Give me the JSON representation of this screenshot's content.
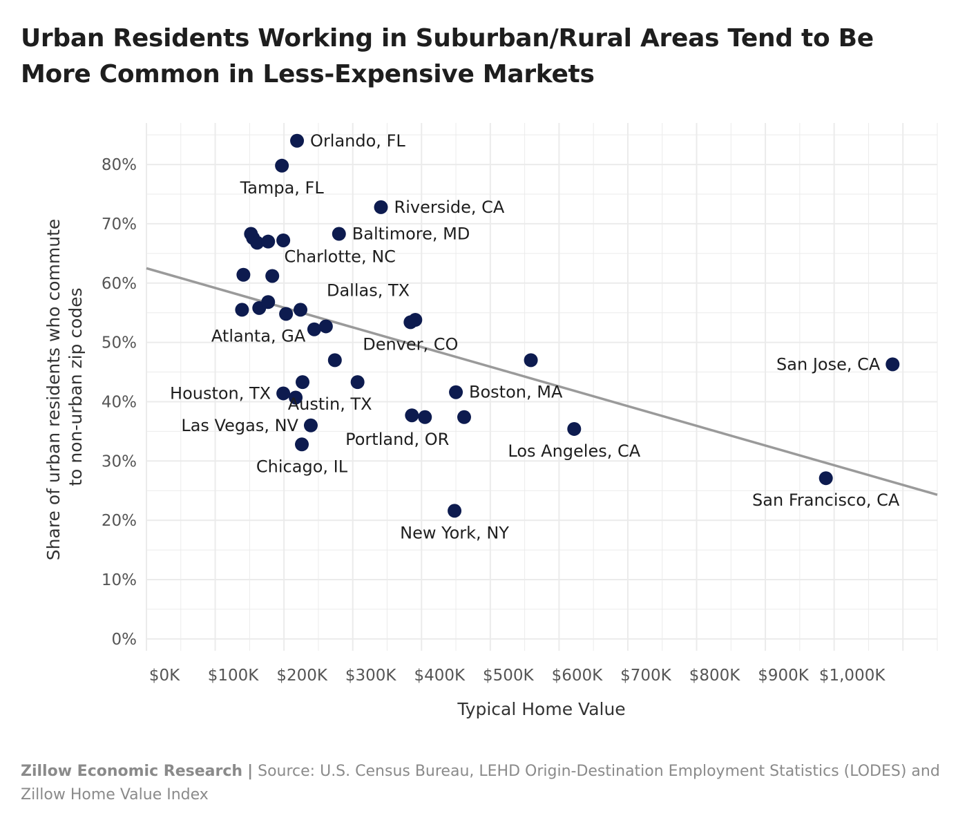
{
  "title": "Urban Residents Working in Suburban/Rural Areas Tend to Be More Common in Less-Expensive Markets",
  "footer": {
    "org": "Zillow Economic Research",
    "separator": "|",
    "source": "Source: U.S. Census Bureau, LEHD Origin-Destination Employment Statistics (LODES) and Zillow Home Value Index"
  },
  "colors": {
    "point": "#0d1b4f",
    "trend": "#9a9a9a",
    "grid": "#ebebeb",
    "axis_text": "#555555"
  },
  "chart_data": {
    "type": "scatter",
    "xlabel": "Typical Home Value",
    "ylabel_lines": [
      "Share of urban residents who commute",
      "to non-urban zip codes"
    ],
    "xlim": [
      0,
      1150
    ],
    "ylim": [
      -2,
      87
    ],
    "x_ticks": [
      0,
      100,
      200,
      300,
      400,
      500,
      600,
      700,
      800,
      900,
      1000
    ],
    "x_tick_labels": [
      "$0K",
      "$100K",
      "$200K",
      "$300K",
      "$400K",
      "$500K",
      "$600K",
      "$700K",
      "$800K",
      "$900K",
      "$1,000K"
    ],
    "y_ticks": [
      0,
      10,
      20,
      30,
      40,
      50,
      60,
      70,
      80
    ],
    "y_tick_labels": [
      "0%",
      "10%",
      "20%",
      "30%",
      "40%",
      "50%",
      "60%",
      "70%",
      "80%"
    ],
    "grid": true,
    "trendline": {
      "x": [
        0,
        1150
      ],
      "y": [
        62.5,
        24.3
      ]
    },
    "points": [
      {
        "x": 219,
        "y": 84.0,
        "label": "Orlando, FL",
        "pos": "right"
      },
      {
        "x": 197,
        "y": 79.8,
        "label": "Tampa, FL",
        "pos": "below"
      },
      {
        "x": 341,
        "y": 72.8,
        "label": "Riverside, CA",
        "pos": "right"
      },
      {
        "x": 280,
        "y": 68.3,
        "label": "Baltimore, MD",
        "pos": "right"
      },
      {
        "x": 152,
        "y": 68.3,
        "label": "",
        "pos": "none"
      },
      {
        "x": 155,
        "y": 67.6,
        "label": "",
        "pos": "none"
      },
      {
        "x": 161,
        "y": 66.8,
        "label": "",
        "pos": "none"
      },
      {
        "x": 177,
        "y": 67.0,
        "label": "",
        "pos": "none"
      },
      {
        "x": 199,
        "y": 67.2,
        "label": "",
        "pos": "none"
      },
      {
        "x": 183,
        "y": 61.2,
        "label": "Charlotte, NC",
        "pos": "above-right"
      },
      {
        "x": 141,
        "y": 61.4,
        "label": "",
        "pos": "none"
      },
      {
        "x": 224,
        "y": 55.5,
        "label": "Dallas, TX",
        "pos": "above-right"
      },
      {
        "x": 139,
        "y": 55.5,
        "label": "",
        "pos": "none"
      },
      {
        "x": 164,
        "y": 55.8,
        "label": "",
        "pos": "none"
      },
      {
        "x": 177,
        "y": 56.8,
        "label": "",
        "pos": "none"
      },
      {
        "x": 203,
        "y": 54.8,
        "label": "Atlanta, GA",
        "pos": "below-left"
      },
      {
        "x": 244,
        "y": 52.2,
        "label": "",
        "pos": "none"
      },
      {
        "x": 261,
        "y": 52.7,
        "label": "",
        "pos": "none"
      },
      {
        "x": 384,
        "y": 53.4,
        "label": "Denver, CO",
        "pos": "below"
      },
      {
        "x": 391,
        "y": 53.8,
        "label": "",
        "pos": "none"
      },
      {
        "x": 274,
        "y": 47.0,
        "label": "",
        "pos": "none"
      },
      {
        "x": 559,
        "y": 47.0,
        "label": "",
        "pos": "none"
      },
      {
        "x": 1085,
        "y": 46.3,
        "label": "San Jose, CA",
        "pos": "left"
      },
      {
        "x": 227,
        "y": 43.3,
        "label": "",
        "pos": "none"
      },
      {
        "x": 307,
        "y": 43.3,
        "label": "Austin, TX",
        "pos": "below-left"
      },
      {
        "x": 199,
        "y": 41.4,
        "label": "Houston, TX",
        "pos": "left"
      },
      {
        "x": 217,
        "y": 40.7,
        "label": "",
        "pos": "none"
      },
      {
        "x": 450,
        "y": 41.6,
        "label": "Boston, MA",
        "pos": "right"
      },
      {
        "x": 386,
        "y": 37.7,
        "label": "",
        "pos": "none"
      },
      {
        "x": 405,
        "y": 37.4,
        "label": "Portland, OR",
        "pos": "below-left"
      },
      {
        "x": 462,
        "y": 37.4,
        "label": "",
        "pos": "none"
      },
      {
        "x": 239,
        "y": 36.0,
        "label": "Las Vegas, NV",
        "pos": "left"
      },
      {
        "x": 622,
        "y": 35.4,
        "label": "Los Angeles, CA",
        "pos": "below"
      },
      {
        "x": 226,
        "y": 32.8,
        "label": "Chicago, IL",
        "pos": "below"
      },
      {
        "x": 988,
        "y": 27.1,
        "label": "San Francisco, CA",
        "pos": "below"
      },
      {
        "x": 448,
        "y": 21.6,
        "label": "New York, NY",
        "pos": "below"
      }
    ]
  }
}
